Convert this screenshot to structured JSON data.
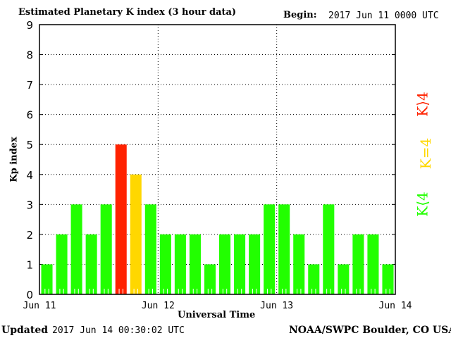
{
  "header": {
    "title": "Estimated Planetary K index (3 hour data)",
    "begin_label": "Begin:",
    "begin_value": "2017 Jun 11 0000 UTC"
  },
  "footer": {
    "updated_label": "Updated",
    "updated_value": "2017 Jun 14 00:30:02 UTC",
    "source": "NOAA/SWPC Boulder, CO USA"
  },
  "legend": [
    {
      "label": "K>4",
      "color": "#ff2200"
    },
    {
      "label": "K=4",
      "color": "#ffd700"
    },
    {
      "label": "K<4",
      "color": "#22ff00"
    }
  ],
  "chart_data": {
    "type": "bar",
    "title": "Estimated Planetary K index (3 hour data)",
    "xlabel": "Universal Time",
    "ylabel": "Kp index",
    "ylim": [
      0,
      9
    ],
    "yticks": [
      "0",
      "1",
      "2",
      "3",
      "4",
      "5",
      "6",
      "7",
      "8",
      "9"
    ],
    "xticks": [
      "Jun 11",
      "Jun 12",
      "Jun 13",
      "Jun 14"
    ],
    "interval_hours": 3,
    "values": [
      1,
      2,
      3,
      2,
      3,
      5,
      4,
      3,
      2,
      2,
      2,
      1,
      2,
      2,
      2,
      3,
      3,
      2,
      1,
      3,
      1,
      2,
      2,
      1
    ],
    "grid": true
  }
}
